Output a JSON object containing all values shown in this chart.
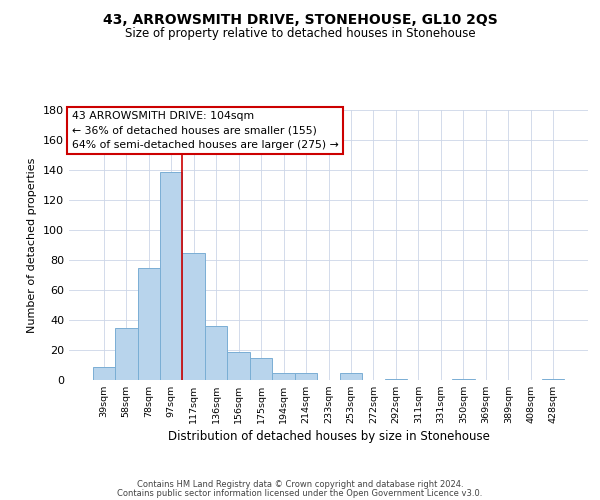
{
  "title": "43, ARROWSMITH DRIVE, STONEHOUSE, GL10 2QS",
  "subtitle": "Size of property relative to detached houses in Stonehouse",
  "xlabel": "Distribution of detached houses by size in Stonehouse",
  "ylabel": "Number of detached properties",
  "bar_labels": [
    "39sqm",
    "58sqm",
    "78sqm",
    "97sqm",
    "117sqm",
    "136sqm",
    "156sqm",
    "175sqm",
    "194sqm",
    "214sqm",
    "233sqm",
    "253sqm",
    "272sqm",
    "292sqm",
    "311sqm",
    "331sqm",
    "350sqm",
    "369sqm",
    "389sqm",
    "408sqm",
    "428sqm"
  ],
  "bar_values": [
    9,
    35,
    75,
    139,
    85,
    36,
    19,
    15,
    5,
    5,
    0,
    5,
    0,
    1,
    0,
    0,
    1,
    0,
    0,
    0,
    1
  ],
  "bar_color": "#b8d4ec",
  "bar_edge_color": "#7aaed4",
  "vline_x": 3.5,
  "vline_color": "#cc0000",
  "ylim": [
    0,
    180
  ],
  "yticks": [
    0,
    20,
    40,
    60,
    80,
    100,
    120,
    140,
    160,
    180
  ],
  "annotation_title": "43 ARROWSMITH DRIVE: 104sqm",
  "annotation_line1": "← 36% of detached houses are smaller (155)",
  "annotation_line2": "64% of semi-detached houses are larger (275) →",
  "annotation_box_color": "#ffffff",
  "annotation_box_edge": "#cc0000",
  "footer1": "Contains HM Land Registry data © Crown copyright and database right 2024.",
  "footer2": "Contains public sector information licensed under the Open Government Licence v3.0.",
  "bg_color": "#ffffff",
  "grid_color": "#ccd6e8"
}
